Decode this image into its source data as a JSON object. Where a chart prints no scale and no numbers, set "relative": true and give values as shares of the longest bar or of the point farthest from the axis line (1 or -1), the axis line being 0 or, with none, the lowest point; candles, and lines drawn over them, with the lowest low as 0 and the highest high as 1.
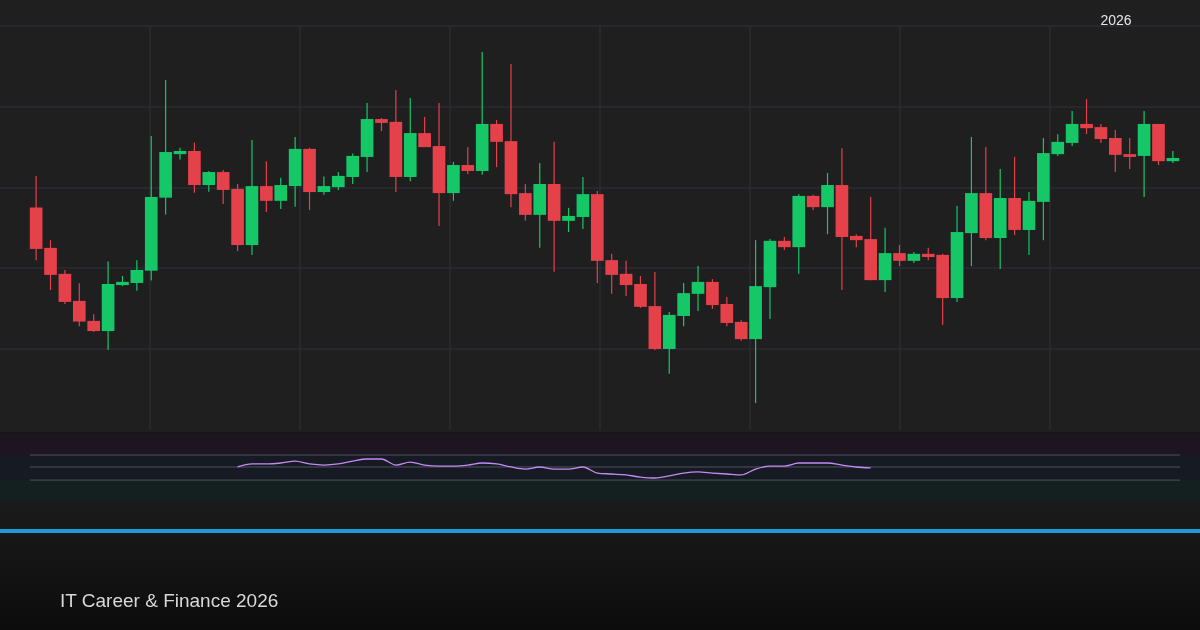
{
  "chart_data": [
    {
      "type": "candlestick",
      "relative": true,
      "subtitle": "IT Career & Finance 2026",
      "annotations": [
        "2026"
      ],
      "grid": true,
      "categories": [
        null,
        null,
        null,
        null,
        null,
        null,
        null,
        null,
        null,
        null,
        null,
        null,
        null,
        null,
        null,
        null,
        null,
        null,
        null,
        null,
        null,
        null,
        null,
        null,
        null,
        null,
        null,
        null,
        null,
        null,
        null,
        null,
        null,
        null,
        null,
        null,
        null,
        null,
        null,
        null,
        null,
        null,
        null,
        null,
        null,
        null,
        null,
        null,
        null,
        null,
        null,
        null,
        null,
        null,
        null,
        null,
        null,
        null,
        null,
        null,
        null,
        null,
        null,
        null,
        null,
        null,
        null,
        null,
        null,
        null,
        null,
        null,
        null,
        null,
        null,
        null,
        null,
        null,
        null,
        null
      ],
      "ohlc": [
        [
          0.557,
          0.647,
          0.407,
          0.439
        ],
        [
          0.442,
          0.464,
          0.322,
          0.365
        ],
        [
          0.368,
          0.379,
          0.282,
          0.288
        ],
        [
          0.291,
          0.341,
          0.219,
          0.232
        ],
        [
          0.234,
          0.253,
          0.202,
          0.205
        ],
        [
          0.205,
          0.403,
          0.151,
          0.339
        ],
        [
          0.336,
          0.362,
          0.333,
          0.345
        ],
        [
          0.342,
          0.407,
          0.32,
          0.379
        ],
        [
          0.377,
          0.761,
          0.349,
          0.587
        ],
        [
          0.585,
          0.92,
          0.537,
          0.715
        ],
        [
          0.709,
          0.727,
          0.694,
          0.718
        ],
        [
          0.718,
          0.742,
          0.599,
          0.621
        ],
        [
          0.621,
          0.661,
          0.602,
          0.658
        ],
        [
          0.658,
          0.664,
          0.567,
          0.607
        ],
        [
          0.61,
          0.624,
          0.433,
          0.45
        ],
        [
          0.45,
          0.749,
          0.422,
          0.618
        ],
        [
          0.618,
          0.689,
          0.544,
          0.576
        ],
        [
          0.576,
          0.642,
          0.553,
          0.621
        ],
        [
          0.618,
          0.758,
          0.559,
          0.724
        ],
        [
          0.724,
          0.727,
          0.55,
          0.601
        ],
        [
          0.601,
          0.645,
          0.593,
          0.618
        ],
        [
          0.615,
          0.658,
          0.607,
          0.647
        ],
        [
          0.644,
          0.711,
          0.624,
          0.704
        ],
        [
          0.701,
          0.855,
          0.658,
          0.809
        ],
        [
          0.809,
          0.812,
          0.775,
          0.798
        ],
        [
          0.801,
          0.892,
          0.601,
          0.644
        ],
        [
          0.644,
          0.869,
          0.632,
          0.769
        ],
        [
          0.769,
          0.815,
          0.729,
          0.729
        ],
        [
          0.732,
          0.855,
          0.504,
          0.598
        ],
        [
          0.598,
          0.687,
          0.576,
          0.678
        ],
        [
          0.678,
          0.729,
          0.652,
          0.661
        ],
        [
          0.661,
          1,
          0.65,
          0.795
        ],
        [
          0.795,
          0.806,
          0.672,
          0.744
        ],
        [
          0.746,
          0.966,
          0.558,
          0.595
        ],
        [
          0.598,
          0.624,
          0.519,
          0.536
        ],
        [
          0.536,
          0.684,
          0.442,
          0.624
        ],
        [
          0.624,
          0.744,
          0.374,
          0.519
        ],
        [
          0.519,
          0.556,
          0.487,
          0.533
        ],
        [
          0.53,
          0.644,
          0.496,
          0.595
        ],
        [
          0.595,
          0.604,
          0.342,
          0.405
        ],
        [
          0.407,
          0.425,
          0.311,
          0.365
        ],
        [
          0.368,
          0.405,
          0.305,
          0.336
        ],
        [
          0.339,
          0.362,
          0.271,
          0.274
        ],
        [
          0.276,
          0.373,
          0.151,
          0.154
        ],
        [
          0.154,
          0.259,
          0.083,
          0.251
        ],
        [
          0.248,
          0.342,
          0.219,
          0.313
        ],
        [
          0.311,
          0.39,
          0.262,
          0.345
        ],
        [
          0.345,
          0.353,
          0.268,
          0.279
        ],
        [
          0.282,
          0.302,
          0.219,
          0.228
        ],
        [
          0.231,
          0.236,
          0.177,
          0.182
        ],
        [
          0.182,
          0.464,
          0,
          0.333
        ],
        [
          0.33,
          0.467,
          0.239,
          0.462
        ],
        [
          0.462,
          0.473,
          0.436,
          0.444
        ],
        [
          0.444,
          0.595,
          0.368,
          0.59
        ],
        [
          0.59,
          0.593,
          0.55,
          0.558
        ],
        [
          0.558,
          0.655,
          0.481,
          0.621
        ],
        [
          0.621,
          0.726,
          0.322,
          0.473
        ],
        [
          0.476,
          0.481,
          0.444,
          0.464
        ],
        [
          0.467,
          0.587,
          0.35,
          0.35
        ],
        [
          0.35,
          0.499,
          0.316,
          0.427
        ],
        [
          0.427,
          0.45,
          0.39,
          0.405
        ],
        [
          0.405,
          0.43,
          0.399,
          0.425
        ],
        [
          0.425,
          0.442,
          0.407,
          0.416
        ],
        [
          0.422,
          0.425,
          0.222,
          0.299
        ],
        [
          0.299,
          0.561,
          0.288,
          0.487
        ],
        [
          0.484,
          0.758,
          0.39,
          0.598
        ],
        [
          0.598,
          0.729,
          0.464,
          0.47
        ],
        [
          0.47,
          0.667,
          0.382,
          0.584
        ],
        [
          0.584,
          0.701,
          0.479,
          0.493
        ],
        [
          0.493,
          0.601,
          0.422,
          0.576
        ],
        [
          0.573,
          0.755,
          0.464,
          0.712
        ],
        [
          0.709,
          0.766,
          0.704,
          0.744
        ],
        [
          0.741,
          0.832,
          0.732,
          0.795
        ],
        [
          0.795,
          0.866,
          0.766,
          0.783
        ],
        [
          0.786,
          0.795,
          0.741,
          0.752
        ],
        [
          0.755,
          0.778,
          0.658,
          0.707
        ],
        [
          0.709,
          0.755,
          0.667,
          0.701
        ],
        [
          0.704,
          0.832,
          0.587,
          0.795
        ],
        [
          0.795,
          0.795,
          0.678,
          0.689
        ],
        [
          0.689,
          0.718,
          0.684,
          0.698
        ]
      ],
      "colors": [
        "#e5414b",
        "#e5414b",
        "#e5414b",
        "#e5414b",
        "#e5414b",
        "#16c768",
        "#16c768",
        "#16c768",
        "#16c768",
        "#16c768",
        "#16c768",
        "#e5414b",
        "#16c768",
        "#e5414b",
        "#e5414b",
        "#16c768",
        "#e5414b",
        "#16c768",
        "#16c768",
        "#e5414b",
        "#16c768",
        "#16c768",
        "#16c768",
        "#16c768",
        "#e5414b",
        "#e5414b",
        "#16c768",
        "#e5414b",
        "#e5414b",
        "#16c768",
        "#e5414b",
        "#16c768",
        "#e5414b",
        "#e5414b",
        "#e5414b",
        "#16c768",
        "#e5414b",
        "#16c768",
        "#16c768",
        "#e5414b",
        "#e5414b",
        "#e5414b",
        "#e5414b",
        "#e5414b",
        "#16c768",
        "#16c768",
        "#16c768",
        "#e5414b",
        "#e5414b",
        "#e5414b",
        "#16c768",
        "#16c768",
        "#e5414b",
        "#16c768",
        "#e5414b",
        "#16c768",
        "#e5414b",
        "#e5414b",
        "#e5414b",
        "#16c768",
        "#e5414b",
        "#16c768",
        "#e5414b",
        "#e5414b",
        "#16c768",
        "#16c768",
        "#e5414b",
        "#16c768",
        "#e5414b",
        "#16c768",
        "#16c768",
        "#16c768",
        "#16c768",
        "#e5414b",
        "#e5414b",
        "#e5414b",
        "#e5414b",
        "#16c768",
        "#e5414b",
        "#16c768"
      ]
    },
    {
      "type": "line",
      "relative": true,
      "color": "#c58af5",
      "ref_lines": [
        {
          "axis": "y",
          "value": 1.21,
          "color": "#5b6170"
        },
        {
          "axis": "y",
          "value": 0.58,
          "color": "#5b6170"
        },
        {
          "axis": "y",
          "value": -0.11,
          "color": "#5b6170"
        }
      ],
      "categories": [
        null,
        null,
        null,
        null,
        null,
        null,
        null,
        null,
        null,
        null,
        null,
        null,
        null,
        null,
        null,
        null,
        null,
        null,
        null,
        null,
        null,
        null,
        null,
        null,
        null,
        null,
        null,
        null,
        null,
        null,
        null,
        null,
        null,
        null,
        null,
        null,
        null,
        null,
        null,
        null,
        null,
        null,
        null,
        null,
        null,
        null,
        null,
        null,
        null,
        null,
        null,
        null,
        null,
        null,
        null,
        null,
        null,
        null,
        null,
        null,
        null,
        null,
        null,
        null,
        null,
        null,
        null,
        null,
        null,
        null,
        null,
        null,
        null,
        null,
        null,
        null,
        null,
        null,
        null,
        null
      ],
      "values": [
        null,
        null,
        null,
        null,
        null,
        null,
        null,
        null,
        null,
        null,
        null,
        null,
        null,
        null,
        0.58,
        0.74,
        0.74,
        0.79,
        0.89,
        0.74,
        0.68,
        0.74,
        0.89,
        1,
        1,
        0.68,
        0.84,
        0.68,
        0.63,
        0.63,
        0.68,
        0.79,
        0.74,
        0.58,
        0.47,
        0.58,
        0.47,
        0.47,
        0.58,
        0.26,
        0.21,
        0.16,
        0.05,
        0,
        0.11,
        0.26,
        0.32,
        0.26,
        0.21,
        0.16,
        0.47,
        0.63,
        0.63,
        0.79,
        0.79,
        0.79,
        0.68,
        0.58,
        0.53,
        null,
        null,
        null,
        null,
        null,
        null,
        null,
        null,
        null,
        null,
        null,
        null,
        null,
        null,
        null,
        null,
        null,
        null,
        null,
        null,
        null
      ]
    }
  ]
}
